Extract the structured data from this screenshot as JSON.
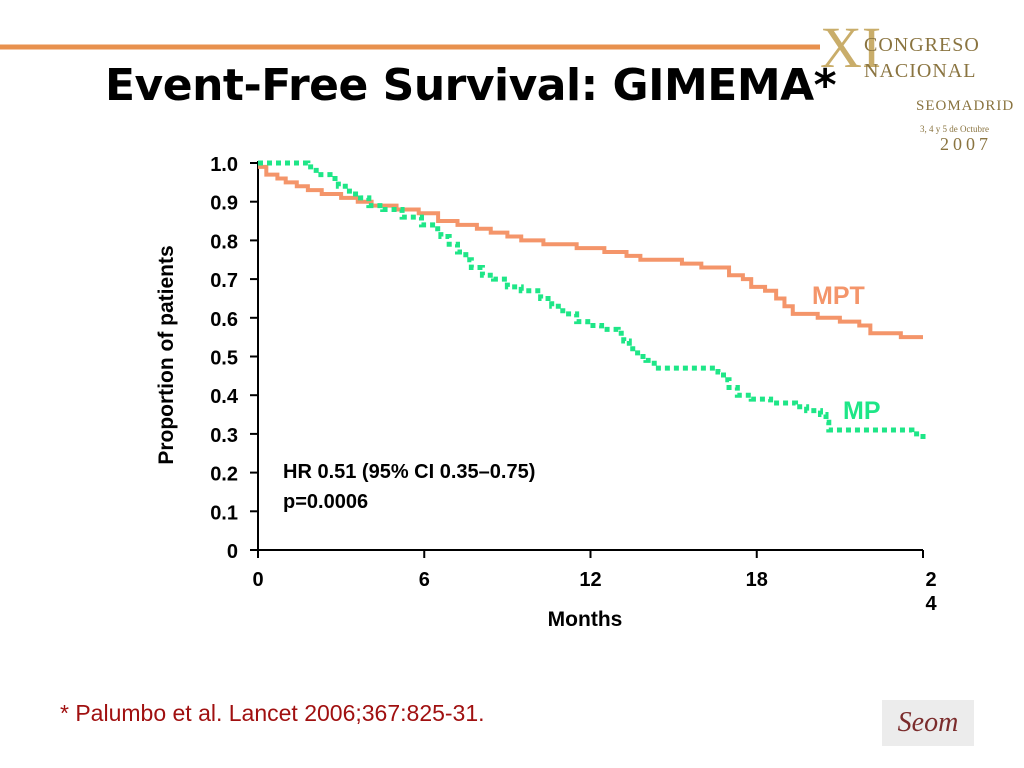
{
  "slide": {
    "title": "Event-Free Survival: GIMEMA*",
    "citation": "* Palumbo et al. Lancet 2006;367:825-31.",
    "logo": {
      "roman": "XI",
      "line1": "CONGRESO",
      "line2": "NACIONAL",
      "line3": "SEOMADRID",
      "line4": "3, 4 y 5 de Octubre",
      "line5": "2007"
    },
    "footer_logo": "Seom"
  },
  "chart_data": {
    "type": "line",
    "xlabel": "Months",
    "ylabel": "Proportion of patients",
    "xlim": [
      0,
      24
    ],
    "ylim": [
      0,
      1.0
    ],
    "x_ticks": [
      "0",
      "6",
      "12",
      "18",
      "2\n4"
    ],
    "x_tick_values": [
      0,
      6,
      12,
      18,
      24
    ],
    "y_ticks": [
      "0",
      "0.1",
      "0.2",
      "0.3",
      "0.4",
      "0.5",
      "0.6",
      "0.7",
      "0.8",
      "0.9",
      "1.0"
    ],
    "y_tick_values": [
      0,
      0.1,
      0.2,
      0.3,
      0.4,
      0.5,
      0.6,
      0.7,
      0.8,
      0.9,
      1.0
    ],
    "annotation_line1": "HR 0.51 (95% CI 0.35–0.75)",
    "annotation_line2": "p=0.0006",
    "series": [
      {
        "name": "MPT",
        "color": "#f4956a",
        "style": "solid",
        "points": [
          [
            0,
            0.99
          ],
          [
            0.3,
            0.97
          ],
          [
            0.7,
            0.96
          ],
          [
            1.0,
            0.95
          ],
          [
            1.4,
            0.94
          ],
          [
            1.8,
            0.93
          ],
          [
            2.3,
            0.92
          ],
          [
            3.0,
            0.91
          ],
          [
            3.6,
            0.9
          ],
          [
            4.1,
            0.89
          ],
          [
            5.0,
            0.88
          ],
          [
            5.8,
            0.87
          ],
          [
            6.5,
            0.85
          ],
          [
            7.2,
            0.84
          ],
          [
            7.9,
            0.83
          ],
          [
            8.4,
            0.82
          ],
          [
            9.0,
            0.81
          ],
          [
            9.5,
            0.8
          ],
          [
            10.3,
            0.79
          ],
          [
            11.5,
            0.78
          ],
          [
            12.5,
            0.77
          ],
          [
            13.3,
            0.76
          ],
          [
            13.8,
            0.75
          ],
          [
            15.3,
            0.74
          ],
          [
            16.0,
            0.73
          ],
          [
            17.0,
            0.71
          ],
          [
            17.5,
            0.7
          ],
          [
            17.8,
            0.68
          ],
          [
            18.3,
            0.67
          ],
          [
            18.7,
            0.65
          ],
          [
            19.0,
            0.63
          ],
          [
            19.3,
            0.61
          ],
          [
            20.2,
            0.6
          ],
          [
            21.0,
            0.59
          ],
          [
            21.7,
            0.58
          ],
          [
            22.1,
            0.56
          ],
          [
            23.2,
            0.55
          ],
          [
            24.0,
            0.55
          ]
        ]
      },
      {
        "name": "MP",
        "color": "#1ee687",
        "style": "dotted",
        "points": [
          [
            0,
            1.0
          ],
          [
            1.3,
            1.0
          ],
          [
            1.8,
            0.99
          ],
          [
            2.1,
            0.97
          ],
          [
            2.6,
            0.96
          ],
          [
            2.9,
            0.94
          ],
          [
            3.3,
            0.92
          ],
          [
            3.7,
            0.91
          ],
          [
            4.0,
            0.89
          ],
          [
            4.5,
            0.88
          ],
          [
            5.2,
            0.86
          ],
          [
            5.9,
            0.84
          ],
          [
            6.3,
            0.83
          ],
          [
            6.6,
            0.81
          ],
          [
            6.9,
            0.79
          ],
          [
            7.2,
            0.77
          ],
          [
            7.5,
            0.75
          ],
          [
            7.7,
            0.73
          ],
          [
            8.1,
            0.71
          ],
          [
            8.5,
            0.7
          ],
          [
            9.0,
            0.68
          ],
          [
            9.5,
            0.67
          ],
          [
            10.2,
            0.65
          ],
          [
            10.6,
            0.63
          ],
          [
            11.0,
            0.61
          ],
          [
            11.5,
            0.59
          ],
          [
            11.9,
            0.58
          ],
          [
            12.4,
            0.57
          ],
          [
            13.0,
            0.56
          ],
          [
            13.2,
            0.54
          ],
          [
            13.4,
            0.52
          ],
          [
            13.7,
            0.5
          ],
          [
            14.0,
            0.49
          ],
          [
            14.3,
            0.47
          ],
          [
            16.0,
            0.47
          ],
          [
            16.6,
            0.46
          ],
          [
            16.8,
            0.44
          ],
          [
            17.0,
            0.42
          ],
          [
            17.3,
            0.4
          ],
          [
            17.8,
            0.39
          ],
          [
            18.5,
            0.38
          ],
          [
            19.4,
            0.37
          ],
          [
            19.8,
            0.36
          ],
          [
            20.3,
            0.35
          ],
          [
            20.5,
            0.33
          ],
          [
            20.6,
            0.31
          ],
          [
            23.6,
            0.3
          ],
          [
            24.0,
            0.28
          ]
        ]
      }
    ]
  }
}
